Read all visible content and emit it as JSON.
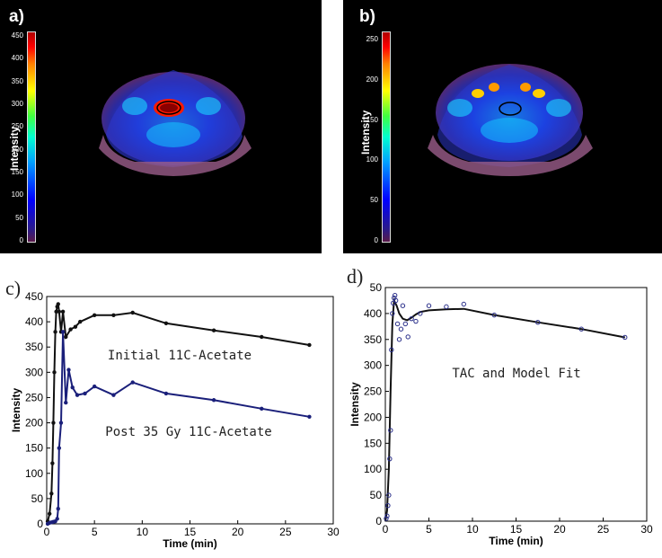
{
  "panel_labels": {
    "a": "a)",
    "b": "b)",
    "c": "c)",
    "d": "d)"
  },
  "colors": {
    "initial": "#111111",
    "post": "#1a1f7a",
    "fit": "#111111",
    "points": "#2a2f8a"
  },
  "image_panels": [
    {
      "id": "a",
      "ylabel": "Intensity",
      "colorbar_ticks": [
        "450",
        "400",
        "350",
        "300",
        "250",
        "200",
        "150",
        "100",
        "50",
        "0"
      ]
    },
    {
      "id": "b",
      "ylabel": "Intensity",
      "colorbar_ticks": [
        "250",
        "200",
        "150",
        "100",
        "50",
        "0"
      ]
    }
  ],
  "chart_data": [
    {
      "type": "line",
      "xlabel": "Time (min)",
      "ylabel": "Intensity",
      "xlim": [
        0,
        30
      ],
      "ylim": [
        0,
        450
      ],
      "xticks": [
        0,
        5,
        10,
        15,
        20,
        25,
        30
      ],
      "yticks": [
        0,
        50,
        100,
        150,
        200,
        250,
        300,
        350,
        400,
        450
      ],
      "annotations": [
        "Initial 11C-Acetate",
        "Post 35 Gy 11C-Acetate"
      ],
      "series": [
        {
          "x": [
            0.1,
            0.3,
            0.5,
            0.6,
            0.7,
            0.8,
            0.9,
            1.0,
            1.1,
            1.2,
            1.3,
            1.5,
            1.7,
            2.0,
            2.5,
            3.0,
            3.5,
            5.0,
            7.0,
            9.0,
            12.5,
            17.5,
            22.5,
            27.5
          ],
          "y": [
            5,
            20,
            60,
            120,
            200,
            300,
            380,
            420,
            430,
            435,
            420,
            380,
            420,
            370,
            385,
            390,
            400,
            413,
            413,
            418,
            397,
            383,
            370,
            354
          ]
        },
        {
          "x": [
            0.1,
            0.3,
            0.5,
            0.7,
            0.9,
            1.1,
            1.2,
            1.3,
            1.5,
            1.7,
            2.0,
            2.3,
            2.7,
            3.2,
            4.0,
            5.0,
            7.0,
            9.0,
            12.5,
            17.5,
            22.5,
            27.5
          ],
          "y": [
            0,
            2,
            3,
            4,
            5,
            10,
            30,
            150,
            200,
            380,
            240,
            305,
            270,
            255,
            258,
            272,
            255,
            280,
            258,
            245,
            228,
            212
          ]
        }
      ]
    },
    {
      "type": "scatter",
      "xlabel": "Time (min)",
      "ylabel": "Intensity",
      "xlim": [
        0,
        30
      ],
      "ylim": [
        0,
        450
      ],
      "xticks": [
        0,
        5,
        10,
        15,
        20,
        25,
        30
      ],
      "yticks": [
        0,
        50,
        100,
        150,
        200,
        250,
        300,
        350,
        400
      ],
      "top_tick_label": "50",
      "annotations": [
        "TAC and Model Fit"
      ],
      "points": {
        "x": [
          0.1,
          0.2,
          0.3,
          0.4,
          0.5,
          0.6,
          0.7,
          0.8,
          0.9,
          1.0,
          1.1,
          1.2,
          1.4,
          1.6,
          1.8,
          2.0,
          2.3,
          2.6,
          3.0,
          3.5,
          4.0,
          5.0,
          7.0,
          9.0,
          12.5,
          17.5,
          22.5,
          27.5
        ],
        "y": [
          5,
          10,
          30,
          50,
          120,
          175,
          330,
          400,
          420,
          430,
          435,
          425,
          380,
          350,
          370,
          415,
          380,
          355,
          390,
          385,
          400,
          415,
          413,
          418,
          397,
          383,
          370,
          354
        ]
      },
      "fit": {
        "x": [
          0.0,
          0.2,
          0.4,
          0.6,
          0.8,
          1.0,
          1.3,
          1.6,
          2.0,
          2.5,
          3.0,
          3.5,
          4.0,
          5.0,
          7.0,
          9.0,
          12.5,
          17.5,
          22.5,
          27.5
        ],
        "y": [
          0,
          20,
          100,
          250,
          380,
          425,
          415,
          400,
          390,
          387,
          392,
          398,
          403,
          406,
          408,
          409,
          397,
          383,
          370,
          354
        ]
      }
    }
  ]
}
